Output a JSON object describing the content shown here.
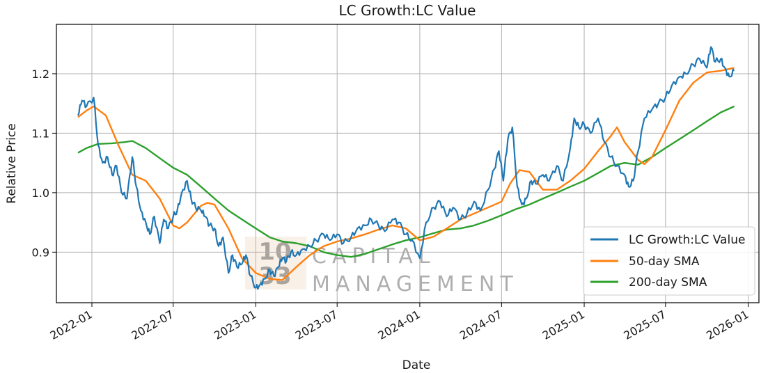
{
  "chart_data": {
    "type": "line",
    "title": "LC Growth:LC Value",
    "xlabel": "Date",
    "ylabel": "Relative Price",
    "grid": true,
    "legend_position": "lower-right",
    "xlim": [
      "2021-10-14",
      "2026-01-25"
    ],
    "ylim": [
      0.815,
      1.283
    ],
    "x_ticks": [
      {
        "date": "2022-01-01",
        "label": "2022-01"
      },
      {
        "date": "2022-07-01",
        "label": "2022-07"
      },
      {
        "date": "2023-01-01",
        "label": "2023-01"
      },
      {
        "date": "2023-07-01",
        "label": "2023-07"
      },
      {
        "date": "2024-01-01",
        "label": "2024-01"
      },
      {
        "date": "2024-07-01",
        "label": "2024-07"
      },
      {
        "date": "2025-01-01",
        "label": "2025-01"
      },
      {
        "date": "2025-07-01",
        "label": "2025-07"
      },
      {
        "date": "2026-01-01",
        "label": "2026-01"
      }
    ],
    "y_ticks": [
      {
        "value": 0.9,
        "label": "0.9"
      },
      {
        "value": 1.0,
        "label": "1.0"
      },
      {
        "value": 1.1,
        "label": "1.1"
      },
      {
        "value": 1.2,
        "label": "1.2"
      }
    ],
    "series": [
      {
        "name": "LC Growth:LC Value",
        "color": "#1f77b4",
        "x": [
          "2021-12-01",
          "2021-12-10",
          "2021-12-20",
          "2022-01-05",
          "2022-01-15",
          "2022-01-25",
          "2022-02-05",
          "2022-02-15",
          "2022-02-25",
          "2022-03-08",
          "2022-03-20",
          "2022-04-01",
          "2022-04-10",
          "2022-04-20",
          "2022-05-01",
          "2022-05-10",
          "2022-05-20",
          "2022-06-01",
          "2022-06-10",
          "2022-06-20",
          "2022-07-01",
          "2022-07-10",
          "2022-07-20",
          "2022-08-01",
          "2022-08-10",
          "2022-08-20",
          "2022-09-01",
          "2022-09-10",
          "2022-09-20",
          "2022-10-01",
          "2022-10-10",
          "2022-10-20",
          "2022-11-01",
          "2022-11-10",
          "2022-11-20",
          "2022-12-01",
          "2022-12-10",
          "2022-12-20",
          "2023-01-01",
          "2023-01-10",
          "2023-01-20",
          "2023-02-01",
          "2023-02-10",
          "2023-02-20",
          "2023-03-01",
          "2023-03-10",
          "2023-03-20",
          "2023-04-01",
          "2023-04-15",
          "2023-05-01",
          "2023-05-15",
          "2023-06-01",
          "2023-06-15",
          "2023-07-01",
          "2023-07-15",
          "2023-08-01",
          "2023-08-15",
          "2023-09-01",
          "2023-09-15",
          "2023-10-01",
          "2023-10-15",
          "2023-11-01",
          "2023-11-15",
          "2023-12-01",
          "2023-12-15",
          "2024-01-01",
          "2024-01-15",
          "2024-02-01",
          "2024-02-15",
          "2024-03-01",
          "2024-03-15",
          "2024-04-01",
          "2024-04-15",
          "2024-05-01",
          "2024-05-15",
          "2024-06-01",
          "2024-06-15",
          "2024-06-25",
          "2024-07-05",
          "2024-07-15",
          "2024-07-25",
          "2024-08-05",
          "2024-08-15",
          "2024-08-25",
          "2024-09-05",
          "2024-09-15",
          "2024-10-01",
          "2024-10-15",
          "2024-11-01",
          "2024-11-15",
          "2024-12-01",
          "2024-12-10",
          "2024-12-20",
          "2025-01-01",
          "2025-01-15",
          "2025-02-01",
          "2025-02-15",
          "2025-03-01",
          "2025-03-15",
          "2025-04-01",
          "2025-04-10",
          "2025-04-20",
          "2025-05-01",
          "2025-05-15",
          "2025-06-01",
          "2025-06-15",
          "2025-07-01",
          "2025-07-15",
          "2025-08-01",
          "2025-08-15",
          "2025-09-01",
          "2025-09-15",
          "2025-10-01",
          "2025-10-10",
          "2025-10-20",
          "2025-11-01",
          "2025-11-10",
          "2025-11-20",
          "2025-12-01"
        ],
        "y": [
          1.13,
          1.155,
          1.145,
          1.16,
          1.08,
          1.05,
          1.06,
          1.03,
          1.045,
          1.0,
          0.99,
          1.06,
          1.01,
          0.97,
          0.95,
          0.93,
          0.96,
          0.915,
          0.955,
          0.94,
          0.96,
          0.97,
          1.0,
          1.02,
          0.99,
          0.975,
          0.97,
          0.96,
          0.945,
          0.94,
          0.91,
          0.925,
          0.865,
          0.895,
          0.875,
          0.88,
          0.895,
          0.86,
          0.84,
          0.845,
          0.855,
          0.87,
          0.86,
          0.875,
          0.89,
          0.885,
          0.9,
          0.895,
          0.905,
          0.91,
          0.92,
          0.93,
          0.92,
          0.93,
          0.915,
          0.925,
          0.94,
          0.945,
          0.955,
          0.945,
          0.935,
          0.955,
          0.95,
          0.93,
          0.92,
          0.89,
          0.95,
          0.975,
          0.985,
          0.96,
          0.975,
          0.955,
          0.965,
          0.985,
          0.97,
          1.005,
          1.04,
          1.07,
          1.02,
          1.09,
          1.11,
          1.01,
          0.98,
          0.99,
          1.02,
          1.015,
          1.03,
          1.02,
          1.045,
          1.02,
          1.075,
          1.125,
          1.11,
          1.115,
          1.1,
          1.125,
          1.085,
          1.06,
          1.045,
          1.03,
          1.01,
          1.02,
          1.07,
          1.125,
          1.14,
          1.15,
          1.16,
          1.18,
          1.195,
          1.2,
          1.215,
          1.225,
          1.21,
          1.245,
          1.22,
          1.225,
          1.21,
          1.195,
          1.205
        ]
      },
      {
        "name": "50-day SMA",
        "color": "#ff7f0e",
        "x": [
          "2021-12-01",
          "2021-12-20",
          "2022-01-05",
          "2022-02-01",
          "2022-03-01",
          "2022-04-01",
          "2022-05-01",
          "2022-06-01",
          "2022-07-01",
          "2022-07-15",
          "2022-08-01",
          "2022-09-01",
          "2022-09-15",
          "2022-10-01",
          "2022-11-01",
          "2022-12-01",
          "2023-01-01",
          "2023-02-01",
          "2023-03-01",
          "2023-04-01",
          "2023-05-01",
          "2023-06-01",
          "2023-07-01",
          "2023-08-01",
          "2023-09-01",
          "2023-10-01",
          "2023-11-01",
          "2023-12-01",
          "2024-01-01",
          "2024-02-01",
          "2024-03-01",
          "2024-04-01",
          "2024-05-01",
          "2024-06-01",
          "2024-07-01",
          "2024-07-20",
          "2024-08-10",
          "2024-09-01",
          "2024-10-01",
          "2024-11-01",
          "2024-12-01",
          "2025-01-01",
          "2025-02-01",
          "2025-03-01",
          "2025-03-15",
          "2025-04-01",
          "2025-05-01",
          "2025-05-15",
          "2025-06-01",
          "2025-07-01",
          "2025-08-01",
          "2025-09-01",
          "2025-10-01",
          "2025-11-01",
          "2025-12-01"
        ],
        "y": [
          1.127,
          1.138,
          1.145,
          1.13,
          1.08,
          1.03,
          1.02,
          0.99,
          0.945,
          0.94,
          0.95,
          0.978,
          0.983,
          0.98,
          0.94,
          0.89,
          0.865,
          0.855,
          0.853,
          0.875,
          0.895,
          0.91,
          0.918,
          0.923,
          0.93,
          0.938,
          0.945,
          0.94,
          0.92,
          0.926,
          0.94,
          0.955,
          0.965,
          0.975,
          0.985,
          1.015,
          1.038,
          1.035,
          1.005,
          1.005,
          1.02,
          1.04,
          1.07,
          1.095,
          1.11,
          1.085,
          1.055,
          1.048,
          1.06,
          1.105,
          1.155,
          1.185,
          1.202,
          1.205,
          1.21
        ]
      },
      {
        "name": "200-day SMA",
        "color": "#2ca02c",
        "x": [
          "2021-12-01",
          "2021-12-20",
          "2022-01-15",
          "2022-02-15",
          "2022-03-15",
          "2022-04-01",
          "2022-05-01",
          "2022-06-01",
          "2022-07-01",
          "2022-08-01",
          "2022-09-01",
          "2022-10-01",
          "2022-11-01",
          "2022-12-01",
          "2023-01-01",
          "2023-02-01",
          "2023-03-01",
          "2023-04-01",
          "2023-05-01",
          "2023-06-01",
          "2023-07-01",
          "2023-08-01",
          "2023-09-01",
          "2023-10-01",
          "2023-11-01",
          "2023-12-01",
          "2024-01-01",
          "2024-02-01",
          "2024-03-01",
          "2024-04-01",
          "2024-05-01",
          "2024-06-01",
          "2024-07-01",
          "2024-08-01",
          "2024-09-01",
          "2024-10-01",
          "2024-11-01",
          "2024-12-01",
          "2025-01-01",
          "2025-02-01",
          "2025-03-01",
          "2025-04-01",
          "2025-05-01",
          "2025-06-01",
          "2025-07-01",
          "2025-08-01",
          "2025-09-01",
          "2025-10-01",
          "2025-11-01",
          "2025-12-01"
        ],
        "y": [
          1.067,
          1.075,
          1.082,
          1.083,
          1.085,
          1.087,
          1.075,
          1.058,
          1.042,
          1.03,
          1.01,
          0.99,
          0.97,
          0.955,
          0.94,
          0.925,
          0.918,
          0.915,
          0.91,
          0.9,
          0.895,
          0.892,
          0.897,
          0.905,
          0.913,
          0.92,
          0.925,
          0.932,
          0.938,
          0.94,
          0.945,
          0.953,
          0.962,
          0.972,
          0.98,
          0.99,
          1.0,
          1.01,
          1.02,
          1.033,
          1.045,
          1.05,
          1.047,
          1.06,
          1.075,
          1.09,
          1.105,
          1.12,
          1.135,
          1.145
        ]
      }
    ]
  },
  "watermark": {
    "badge_top": "10",
    "badge_bottom": "33",
    "line1": "CAPITAL",
    "line2": "MANAGEMENT"
  }
}
